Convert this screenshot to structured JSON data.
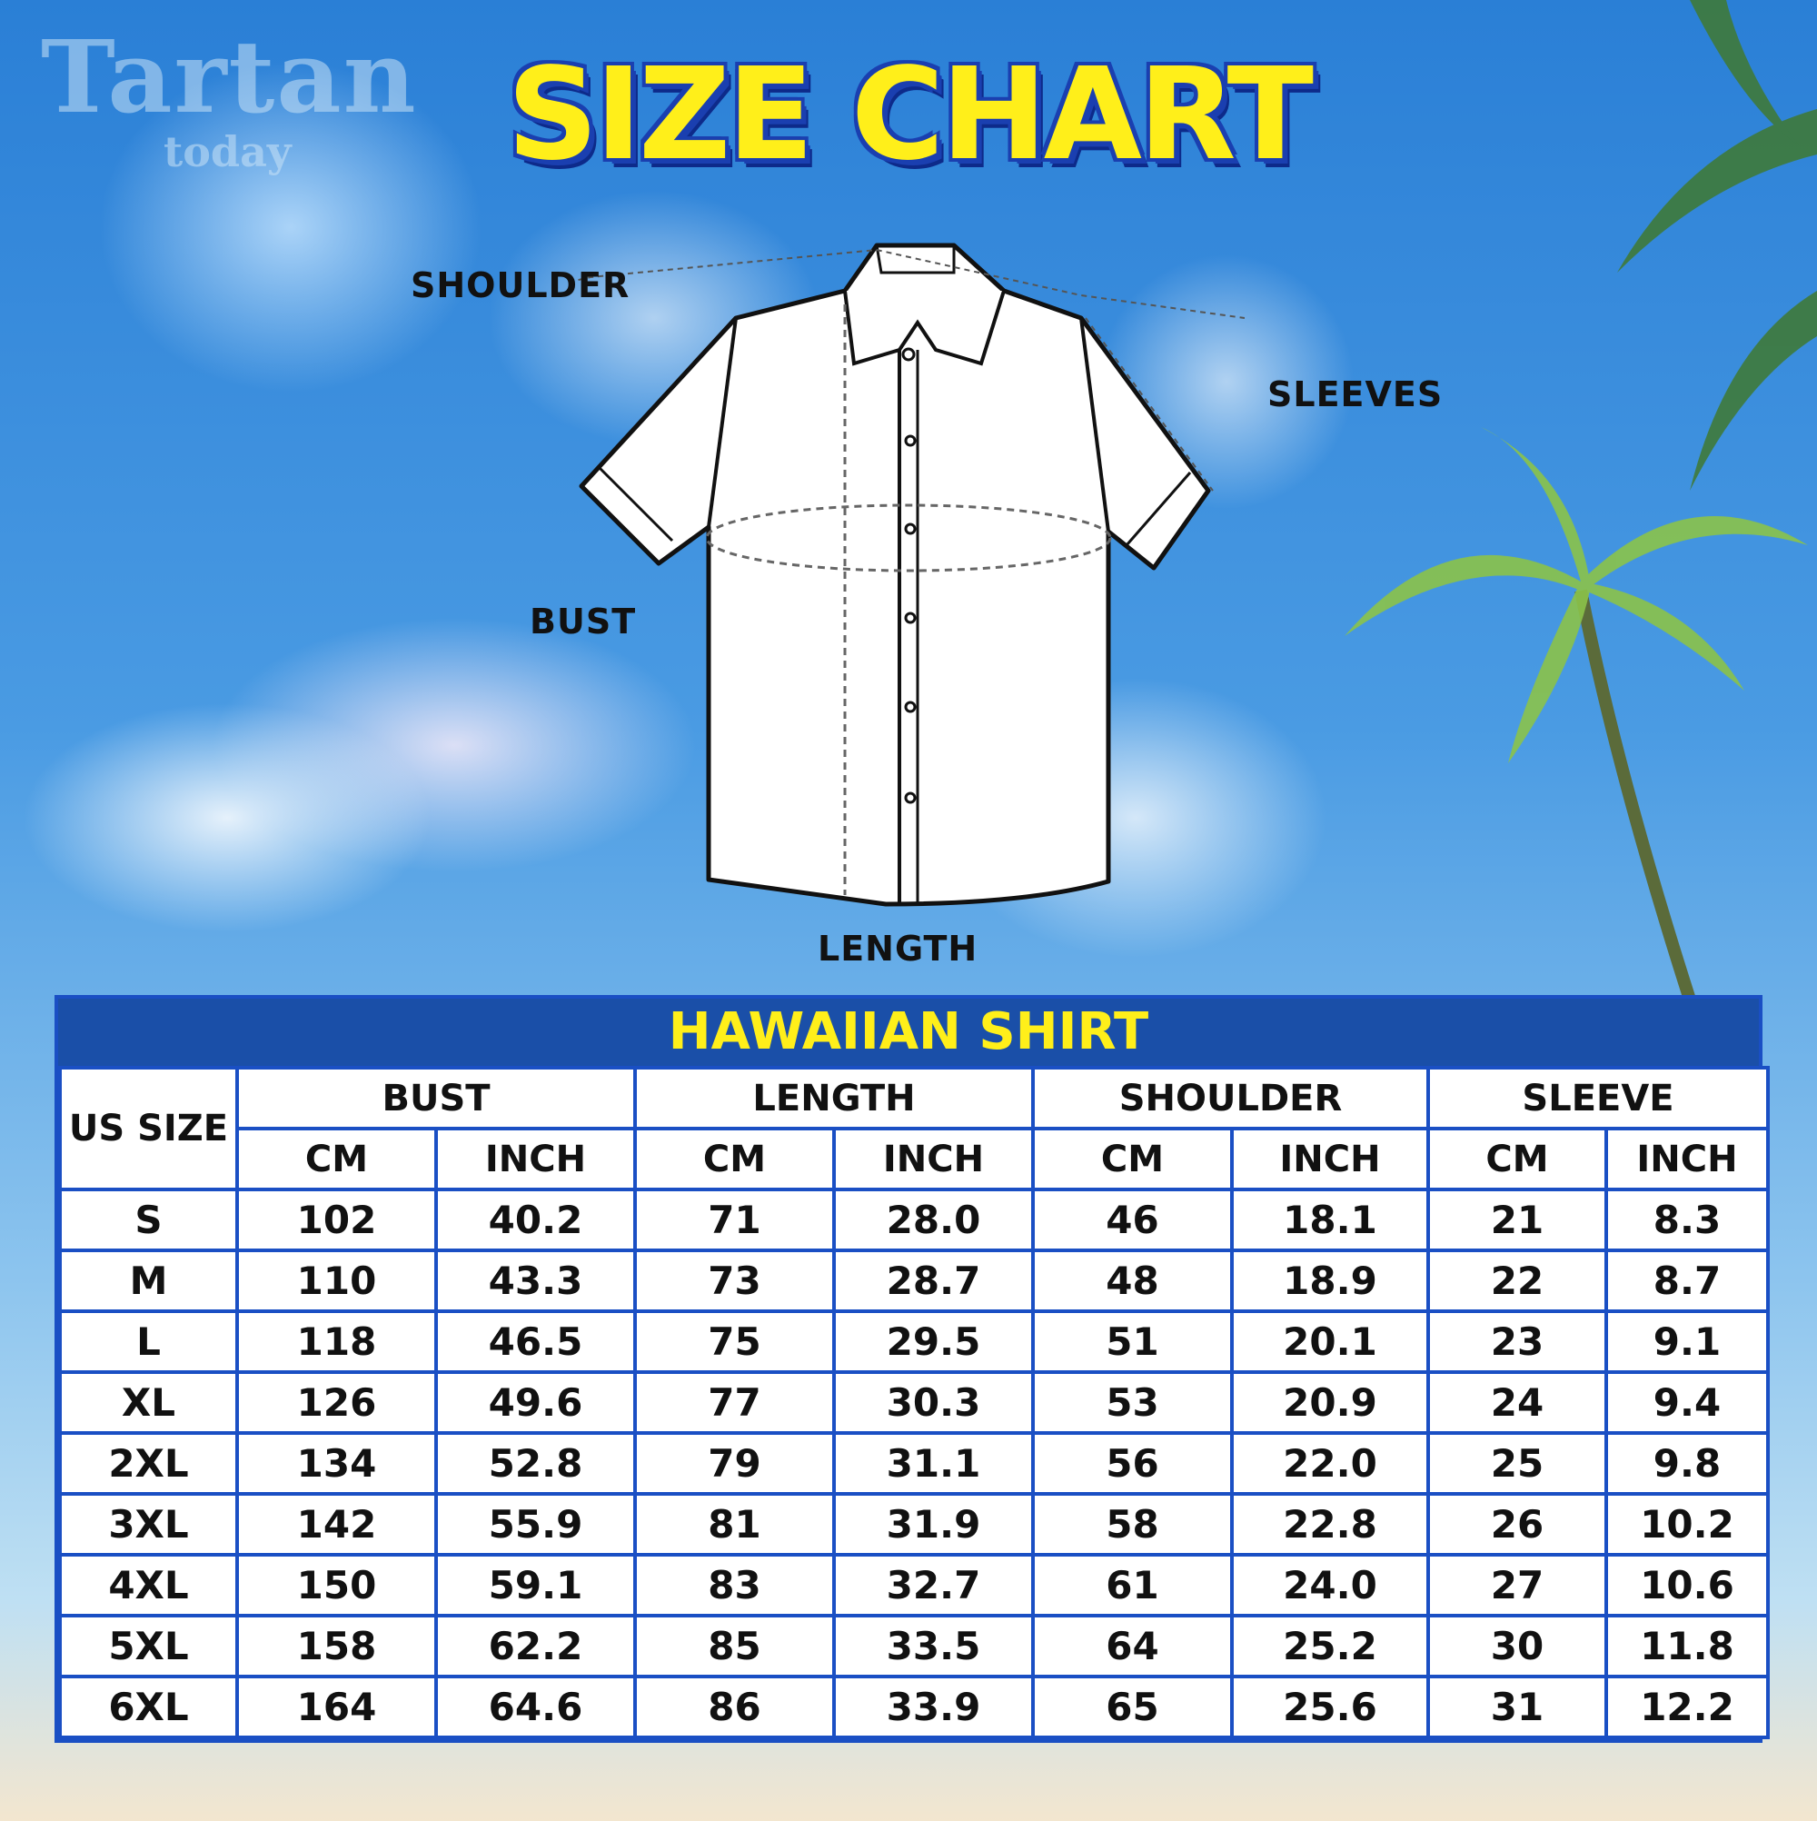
{
  "watermark": {
    "line1": "Tartan",
    "line2": "today"
  },
  "title": "SIZE CHART",
  "diagram": {
    "labels": {
      "shoulder": "SHOULDER",
      "sleeves": "SLEEVES",
      "bust": "BUST",
      "length": "LENGTH"
    }
  },
  "table": {
    "title": "HAWAIIAN SHIRT",
    "size_header": "US SIZE",
    "groups": [
      "BUST",
      "LENGTH",
      "SHOULDER",
      "SLEEVE"
    ],
    "units": [
      "CM",
      "INCH",
      "CM",
      "INCH",
      "CM",
      "INCH",
      "CM",
      "INCH"
    ],
    "rows": [
      [
        "S",
        "102",
        "40.2",
        "71",
        "28.0",
        "46",
        "18.1",
        "21",
        "8.3"
      ],
      [
        "M",
        "110",
        "43.3",
        "73",
        "28.7",
        "48",
        "18.9",
        "22",
        "8.7"
      ],
      [
        "L",
        "118",
        "46.5",
        "75",
        "29.5",
        "51",
        "20.1",
        "23",
        "9.1"
      ],
      [
        "XL",
        "126",
        "49.6",
        "77",
        "30.3",
        "53",
        "20.9",
        "24",
        "9.4"
      ],
      [
        "2XL",
        "134",
        "52.8",
        "79",
        "31.1",
        "56",
        "22.0",
        "25",
        "9.8"
      ],
      [
        "3XL",
        "142",
        "55.9",
        "81",
        "31.9",
        "58",
        "22.8",
        "26",
        "10.2"
      ],
      [
        "4XL",
        "150",
        "59.1",
        "83",
        "32.7",
        "61",
        "24.0",
        "27",
        "10.6"
      ],
      [
        "5XL",
        "158",
        "62.2",
        "85",
        "33.5",
        "64",
        "25.2",
        "30",
        "11.8"
      ],
      [
        "6XL",
        "164",
        "64.6",
        "86",
        "33.9",
        "65",
        "25.6",
        "31",
        "12.2"
      ]
    ]
  },
  "colors": {
    "title_yellow": "#ffef1a",
    "table_blue": "#1a4fc4"
  }
}
